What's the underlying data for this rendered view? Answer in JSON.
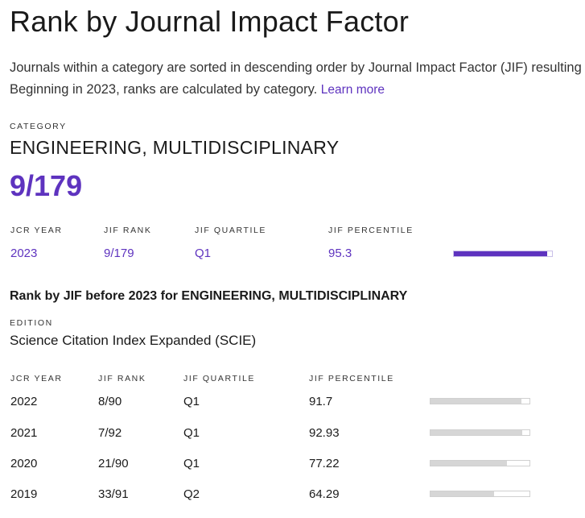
{
  "header": {
    "title": "Rank by Journal Impact Factor",
    "description_line1": "Journals within a category are sorted in descending order by Journal Impact Factor (JIF) resulting in the",
    "description_line2": "Beginning in 2023, ranks are calculated by category.",
    "learn_more": "Learn more"
  },
  "category": {
    "label": "CATEGORY",
    "name": "ENGINEERING, MULTIDISCIPLINARY",
    "rank": "9/179"
  },
  "current": {
    "columns": [
      "JCR YEAR",
      "JIF RANK",
      "JIF QUARTILE",
      "JIF PERCENTILE"
    ],
    "row": {
      "year": "2023",
      "rank": "9/179",
      "quartile": "Q1",
      "percentile": "95.3",
      "percentile_value": 95.3
    }
  },
  "history": {
    "heading": "Rank by JIF before 2023 for ENGINEERING, MULTIDISCIPLINARY",
    "edition_label": "EDITION",
    "edition_name": "Science Citation Index Expanded (SCIE)",
    "columns": [
      "JCR YEAR",
      "JIF RANK",
      "JIF QUARTILE",
      "JIF PERCENTILE"
    ],
    "rows": [
      {
        "year": "2022",
        "rank": "8/90",
        "quartile": "Q1",
        "percentile": "91.7",
        "percentile_value": 91.7
      },
      {
        "year": "2021",
        "rank": "7/92",
        "quartile": "Q1",
        "percentile": "92.93",
        "percentile_value": 92.93
      },
      {
        "year": "2020",
        "rank": "21/90",
        "quartile": "Q1",
        "percentile": "77.22",
        "percentile_value": 77.22
      },
      {
        "year": "2019",
        "rank": "33/91",
        "quartile": "Q2",
        "percentile": "64.29",
        "percentile_value": 64.29
      }
    ]
  },
  "colors": {
    "accent": "#5e33bf",
    "bar_gray": "#d6d6d6",
    "text": "#1a1a1a"
  }
}
